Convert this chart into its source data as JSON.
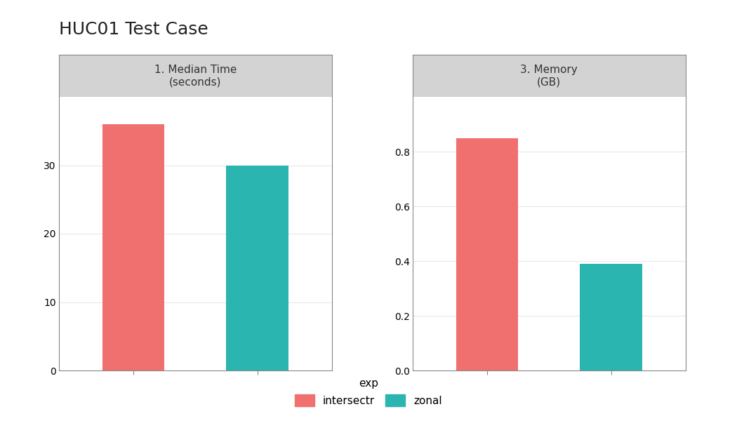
{
  "title": "HUC01 Test Case",
  "panels": [
    {
      "label": "1. Median Time\n(seconds)",
      "categories": [
        "intersectr",
        "zonal"
      ],
      "values": [
        36.0,
        30.0
      ],
      "ylim": [
        0,
        40
      ],
      "yticks": [
        0,
        10,
        20,
        30
      ],
      "ylabel": ""
    },
    {
      "label": "3. Memory\n(GB)",
      "categories": [
        "intersectr",
        "zonal"
      ],
      "values": [
        0.85,
        0.39
      ],
      "ylim": [
        0,
        1.0
      ],
      "yticks": [
        0.0,
        0.2,
        0.4,
        0.6,
        0.8
      ],
      "ylabel": ""
    }
  ],
  "colors": {
    "intersectr": "#F07070",
    "zonal": "#2AB5B0"
  },
  "legend_labels": [
    "intersectr",
    "zonal"
  ],
  "legend_colors": [
    "#F07070",
    "#2AB5B0"
  ],
  "legend_title": "exp",
  "background_color": "#FFFFFF",
  "strip_bg": "#D3D3D3",
  "strip_border": "#888888",
  "plot_bg": "#FFFFFF",
  "grid_color": "#E8E8E8",
  "panel_border": "#888888",
  "title_fontsize": 18,
  "strip_fontsize": 11,
  "tick_fontsize": 10,
  "bar_width": 0.5
}
